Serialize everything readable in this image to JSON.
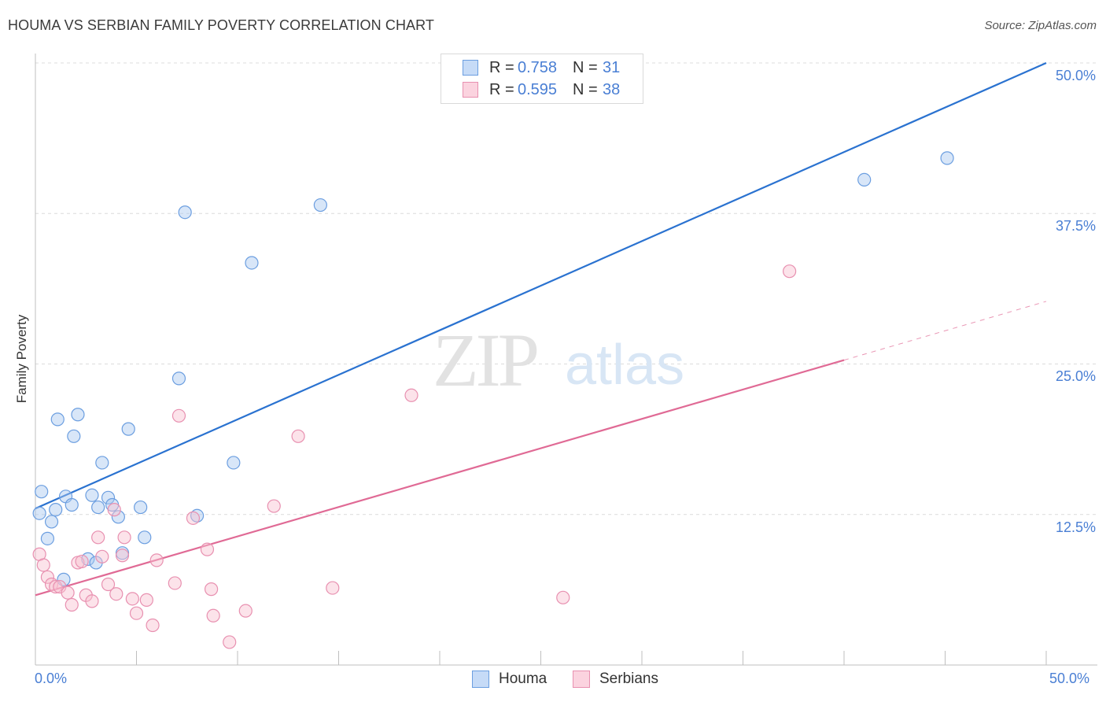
{
  "title": "HOUMA VS SERBIAN FAMILY POVERTY CORRELATION CHART",
  "source": "Source: ZipAtlas.com",
  "watermark": {
    "zip": "ZIP",
    "atlas": "atlas"
  },
  "legend": {
    "rows": [
      {
        "r_label": "R = ",
        "r_value": "0.758",
        "n_label": "N = ",
        "n_value": "31",
        "color": "#a8c8f0",
        "border": "#6b9ee0"
      },
      {
        "r_label": "R = ",
        "r_value": "0.595",
        "n_label": "N = ",
        "n_value": "38",
        "color": "#f8c0d0",
        "border": "#e890b0"
      }
    ]
  },
  "bottom_legend": {
    "houma": "Houma",
    "serbians": "Serbians"
  },
  "colors": {
    "houma": "#a8c8f0",
    "houma_line": "#2a72d0",
    "serbians": "#f8c0d0",
    "serbians_line": "#e06a95",
    "tick_text": "#4a7fd4"
  },
  "chart_data": {
    "type": "scatter",
    "title": "HOUMA VS SERBIAN FAMILY POVERTY CORRELATION CHART",
    "xlabel": "",
    "ylabel": "Family Poverty",
    "xlim": [
      0,
      50
    ],
    "ylim": [
      0,
      50
    ],
    "x_tick_labels": [
      "0.0%",
      "50.0%"
    ],
    "y_ticks": [
      12.5,
      25.0,
      37.5,
      50.0
    ],
    "y_tick_labels": [
      "12.5%",
      "25.0%",
      "37.5%",
      "50.0%"
    ],
    "grid": true,
    "legend_position": "top-center",
    "series": [
      {
        "name": "Houma",
        "r": 0.758,
        "n": 31,
        "points": [
          [
            0.2,
            12.6
          ],
          [
            0.3,
            14.4
          ],
          [
            0.6,
            10.5
          ],
          [
            0.8,
            11.9
          ],
          [
            1.0,
            12.9
          ],
          [
            1.1,
            20.4
          ],
          [
            1.4,
            7.1
          ],
          [
            1.5,
            14.0
          ],
          [
            1.8,
            13.3
          ],
          [
            1.9,
            19.0
          ],
          [
            2.1,
            20.8
          ],
          [
            2.6,
            8.8
          ],
          [
            2.8,
            14.1
          ],
          [
            3.0,
            8.5
          ],
          [
            3.1,
            13.1
          ],
          [
            3.3,
            16.8
          ],
          [
            3.6,
            13.9
          ],
          [
            3.8,
            13.3
          ],
          [
            4.1,
            12.3
          ],
          [
            4.3,
            9.3
          ],
          [
            4.6,
            19.6
          ],
          [
            5.2,
            13.1
          ],
          [
            5.4,
            10.6
          ],
          [
            7.1,
            23.8
          ],
          [
            7.4,
            37.6
          ],
          [
            8.0,
            12.4
          ],
          [
            9.8,
            16.8
          ],
          [
            10.7,
            33.4
          ],
          [
            14.1,
            38.2
          ],
          [
            41.0,
            40.3
          ],
          [
            45.1,
            42.1
          ]
        ],
        "trend": {
          "x": [
            0,
            50
          ],
          "y": [
            13.0,
            50.0
          ],
          "dashed_after_x": null
        }
      },
      {
        "name": "Serbians",
        "r": 0.595,
        "n": 38,
        "points": [
          [
            0.2,
            9.2
          ],
          [
            0.4,
            8.3
          ],
          [
            0.6,
            7.3
          ],
          [
            0.8,
            6.7
          ],
          [
            1.0,
            6.5
          ],
          [
            1.2,
            6.5
          ],
          [
            1.6,
            6.0
          ],
          [
            1.8,
            5.0
          ],
          [
            2.1,
            8.5
          ],
          [
            2.3,
            8.6
          ],
          [
            2.5,
            5.8
          ],
          [
            2.8,
            5.3
          ],
          [
            3.1,
            10.6
          ],
          [
            3.3,
            9.0
          ],
          [
            3.6,
            6.7
          ],
          [
            3.9,
            12.9
          ],
          [
            4.0,
            5.9
          ],
          [
            4.3,
            9.1
          ],
          [
            4.4,
            10.6
          ],
          [
            4.8,
            5.5
          ],
          [
            5.0,
            4.3
          ],
          [
            5.5,
            5.4
          ],
          [
            5.8,
            3.3
          ],
          [
            6.0,
            8.7
          ],
          [
            6.9,
            6.8
          ],
          [
            7.1,
            20.7
          ],
          [
            7.8,
            12.2
          ],
          [
            8.5,
            9.6
          ],
          [
            8.7,
            6.3
          ],
          [
            8.8,
            4.1
          ],
          [
            9.6,
            1.9
          ],
          [
            10.4,
            4.5
          ],
          [
            11.8,
            13.2
          ],
          [
            13.0,
            19.0
          ],
          [
            14.7,
            6.4
          ],
          [
            18.6,
            22.4
          ],
          [
            26.1,
            5.6
          ],
          [
            37.3,
            32.7
          ]
        ],
        "trend": {
          "x": [
            0,
            50
          ],
          "y": [
            5.8,
            30.2
          ],
          "dashed_after_x": 40
        }
      }
    ]
  }
}
